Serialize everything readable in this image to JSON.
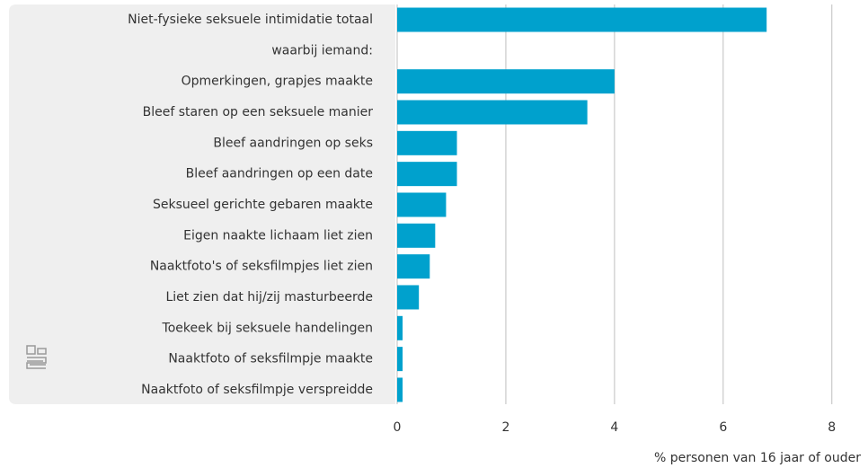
{
  "chart_data": {
    "type": "barh",
    "categories": [
      "Niet-fysieke seksuele intimidatie totaal",
      "waarbij iemand:",
      "Opmerkingen, grapjes maakte",
      "Bleef staren op een seksuele manier",
      "Bleef aandringen op seks",
      "Bleef aandringen op een date",
      "Seksueel gerichte gebaren maakte",
      "Eigen naakte lichaam liet zien",
      "Naaktfoto's of seksfilmpjes liet zien",
      "Liet zien dat hij/zij masturbeerde",
      "Toekeek bij seksuele handelingen",
      "Naaktfoto of seksfilmpje maakte",
      "Naaktfoto of seksfilmpje verspreidde"
    ],
    "values": [
      6.8,
      null,
      4.0,
      3.5,
      1.1,
      1.1,
      0.9,
      0.7,
      0.6,
      0.4,
      0.1,
      0.1,
      0.1
    ],
    "color": "#00a1cd",
    "xlabel": "% personen van 16 jaar of ouder",
    "xlim": [
      0,
      8.5
    ],
    "xticks": [
      0,
      2,
      4,
      6,
      8
    ],
    "grid": true
  }
}
